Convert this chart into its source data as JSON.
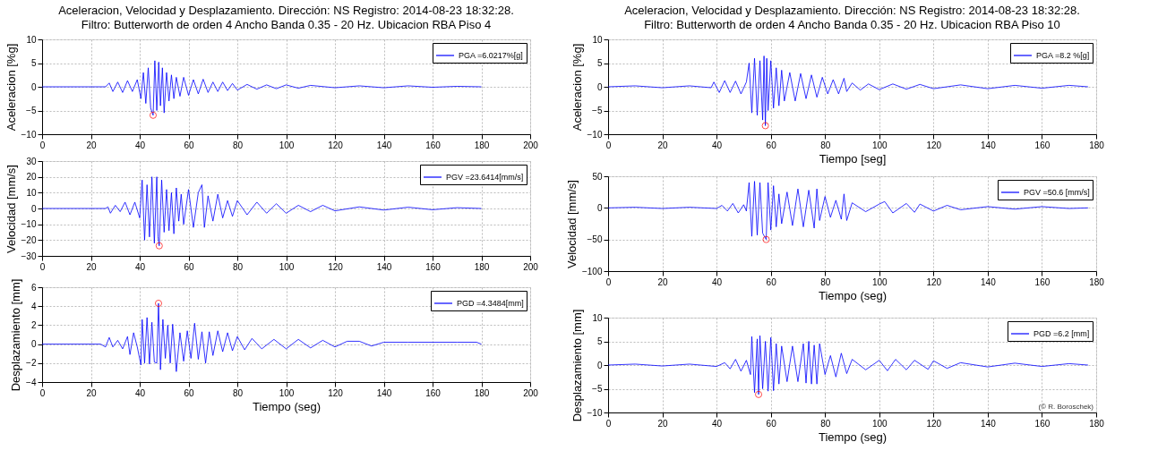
{
  "chart_data": [
    {
      "type": "line",
      "title": "Aceleracion, Velocidad y Desplazamiento. Dirección: NS Registro: 2014-08-23 18:32:28.",
      "subtitle": "Filtro: Butterworth de orden 4 Ancho Banda 0.35 - 20 Hz.  Ubicacion RBA Piso 4",
      "ylabel": "Aceleracion [%g]",
      "xlim": [
        0,
        200
      ],
      "xticks": [
        0,
        20,
        40,
        60,
        80,
        100,
        120,
        140,
        160,
        180,
        200
      ],
      "ylim": [
        -10,
        10
      ],
      "yticks": [
        -10,
        -5,
        0,
        5,
        10
      ],
      "grid": true,
      "legend": "top right",
      "series": [
        {
          "name": "PGA =6.0217%[g]",
          "color": "#0000ff",
          "x": [
            0,
            26,
            27.5,
            29,
            31,
            33,
            35,
            37,
            39,
            40.5,
            41.5,
            42.5,
            43.5,
            44.5,
            45.5,
            46.2,
            47,
            47.8,
            48.5,
            49.3,
            50,
            51,
            52,
            53,
            54,
            55,
            56.5,
            58,
            60,
            62,
            64,
            66,
            68,
            70,
            72,
            74,
            76,
            78,
            80,
            84,
            88,
            92,
            96,
            100,
            105,
            110,
            120,
            130,
            140,
            150,
            160,
            170,
            180
          ],
          "values": [
            0,
            0,
            0.8,
            -1,
            1,
            -1.2,
            1.3,
            -1,
            1.5,
            -2.5,
            3,
            -3.5,
            4,
            -4.5,
            -6,
            5.5,
            -5,
            5.2,
            -4,
            4,
            -5.5,
            3,
            -3,
            2.5,
            -2.5,
            2,
            -2,
            2,
            -1.8,
            1.5,
            -1.5,
            1.6,
            -1.2,
            1,
            -1,
            1,
            -0.8,
            0.7,
            -0.7,
            0.5,
            -0.5,
            0.4,
            -0.4,
            0.4,
            -0.3,
            0.3,
            -0.2,
            0.2,
            -0.2,
            0.2,
            -0.1,
            0.1,
            0
          ]
        },
        {
          "type": "scatter",
          "color": "#ff0000",
          "marker": "circle",
          "x": [
            45.5
          ],
          "values": [
            -6
          ]
        }
      ]
    },
    {
      "type": "line",
      "ylabel": "Velocidad [mm/s]",
      "xlim": [
        0,
        200
      ],
      "xticks": [
        0,
        20,
        40,
        60,
        80,
        100,
        120,
        140,
        160,
        180,
        200
      ],
      "ylim": [
        -30,
        30
      ],
      "yticks": [
        -30,
        -20,
        -10,
        0,
        10,
        20,
        30
      ],
      "grid": true,
      "legend": "top right",
      "series": [
        {
          "name": "PGV =23.6414[mm/s]",
          "color": "#0000ff",
          "x": [
            0,
            26,
            27,
            28,
            30,
            32,
            34,
            36,
            38,
            40,
            41,
            42,
            43,
            44,
            45,
            46,
            47,
            47.5,
            48,
            49,
            50,
            51,
            52,
            53,
            54,
            55,
            56,
            57,
            58,
            60,
            62,
            64,
            65.5,
            66.5,
            68,
            70,
            72,
            74,
            76,
            78,
            80,
            84,
            88,
            92,
            96,
            100,
            105,
            110,
            115,
            120,
            130,
            140,
            150,
            160,
            170,
            180
          ],
          "values": [
            0,
            0,
            1,
            -3,
            2,
            -2,
            4,
            -4,
            4,
            -6,
            18,
            -20,
            15,
            -18,
            20,
            -22,
            20,
            -18,
            -23.6,
            18,
            -15,
            12,
            -14,
            10,
            -16,
            13,
            -8,
            9,
            -10,
            12,
            -12,
            10,
            15,
            -12,
            8,
            -8,
            9,
            -6,
            5,
            -5,
            5,
            -4,
            4,
            -3,
            3,
            -3,
            2,
            -2,
            2,
            -1.5,
            1,
            -1,
            0.8,
            -0.8,
            0.5,
            0
          ]
        },
        {
          "type": "scatter",
          "color": "#ff0000",
          "marker": "circle",
          "x": [
            48
          ],
          "values": [
            -23.6
          ]
        }
      ]
    },
    {
      "type": "line",
      "ylabel": "Desplazamiento [mm]",
      "xlabel": "Tiempo (seg)",
      "xlim": [
        0,
        200
      ],
      "xticks": [
        0,
        20,
        40,
        60,
        80,
        100,
        120,
        140,
        160,
        180,
        200
      ],
      "ylim": [
        -4,
        6
      ],
      "yticks": [
        -4,
        -2,
        0,
        2,
        4,
        6
      ],
      "grid": true,
      "legend": "top right",
      "series": [
        {
          "name": "PGD =4.3484[mm]",
          "color": "#0000ff",
          "x": [
            0,
            24,
            26,
            27.5,
            29,
            31,
            33,
            35,
            36,
            37.5,
            39,
            40.5,
            41,
            42,
            43,
            44,
            45,
            46,
            47,
            47.7,
            48.5,
            49.5,
            50.5,
            51.5,
            52.5,
            53.5,
            55,
            56.5,
            58,
            59.5,
            61,
            62.5,
            64,
            65.5,
            67,
            68.5,
            70,
            72,
            74,
            76,
            78,
            80,
            83,
            86,
            90,
            95,
            100,
            105,
            110,
            115,
            120,
            125,
            130,
            135,
            140,
            150,
            160,
            170,
            178,
            180
          ],
          "values": [
            0,
            0,
            -0.3,
            0.7,
            -0.3,
            0.4,
            -0.5,
            0.8,
            -1.1,
            1.2,
            -0.3,
            -2.2,
            2.6,
            -2,
            2.8,
            -2.1,
            2.3,
            -1.9,
            -2,
            4.3,
            -2.7,
            2.6,
            -1.5,
            2,
            -2,
            2.1,
            -2.9,
            1.2,
            -1.8,
            1.4,
            -1.5,
            2.2,
            -1.6,
            1.3,
            -2,
            1.3,
            -1.2,
            1.4,
            -0.8,
            1.2,
            -0.7,
            0.8,
            -0.6,
            0.6,
            -0.5,
            0.5,
            -0.5,
            0.5,
            -0.4,
            0.4,
            -0.3,
            0.3,
            0.3,
            -0.2,
            0.2,
            0.2,
            0.2,
            0.2,
            0.2,
            0
          ]
        },
        {
          "type": "scatter",
          "color": "#ff0000",
          "marker": "circle",
          "x": [
            47.7
          ],
          "values": [
            4.3
          ]
        }
      ]
    },
    {
      "type": "line",
      "title": "Aceleracion, Velocidad y Desplazamiento. Dirección: NS Registro: 2014-08-23 18:32:28.",
      "subtitle": "Filtro: Butterworth de orden 4 Ancho Banda 0.35 - 20 Hz.  Ubicacion RBA Piso 10",
      "ylabel": "Aceleracion [%g]",
      "xlabel": "Tiempo [seg]",
      "xlim": [
        0,
        180
      ],
      "xticks": [
        0,
        20,
        40,
        60,
        80,
        100,
        120,
        140,
        160,
        180
      ],
      "ylim": [
        -10,
        10
      ],
      "yticks": [
        -10,
        -5,
        0,
        5,
        10
      ],
      "grid": true,
      "legend": "top right",
      "series": [
        {
          "name": "PGA =8.2 %[g]",
          "color": "#0000ff",
          "x": [
            0,
            10,
            20,
            30,
            38,
            39,
            41,
            43,
            45,
            47,
            49,
            51,
            52,
            53,
            54,
            55,
            56,
            57,
            57.5,
            58,
            58.5,
            59,
            60,
            61,
            62,
            63,
            64,
            65,
            67,
            69,
            71,
            73,
            75,
            77,
            79,
            81,
            83,
            85,
            87,
            88,
            90,
            93,
            96,
            100,
            105,
            110,
            115,
            120,
            130,
            140,
            150,
            160,
            170,
            177
          ],
          "values": [
            0,
            0.2,
            -0.2,
            0.2,
            -0.2,
            1,
            -1.2,
            1.3,
            -1.2,
            1.2,
            -1.5,
            1,
            5,
            -5.5,
            6,
            -6,
            5.5,
            -7,
            6.5,
            -8.2,
            6,
            -5,
            5.5,
            -4.5,
            4,
            -4,
            3.5,
            -3,
            3,
            -3,
            2.8,
            -2.5,
            2.5,
            -2.2,
            2,
            -1.5,
            1.5,
            -1.5,
            1.8,
            -1,
            0.8,
            -0.7,
            0.6,
            -0.6,
            0.6,
            -0.5,
            0.5,
            -0.4,
            0.4,
            -0.4,
            0.3,
            -0.3,
            0.3,
            0
          ]
        },
        {
          "type": "scatter",
          "color": "#ff0000",
          "marker": "circle",
          "x": [
            58
          ],
          "values": [
            -8.2
          ]
        }
      ]
    },
    {
      "type": "line",
      "ylabel": "Velocidad [mm/s]",
      "xlabel": "Tiempo (seg)",
      "xlim": [
        0,
        180
      ],
      "xticks": [
        0,
        20,
        40,
        60,
        80,
        100,
        120,
        140,
        160,
        180
      ],
      "ylim": [
        -100,
        50
      ],
      "yticks": [
        -100,
        -50,
        0,
        50
      ],
      "grid": true,
      "legend": "top right",
      "series": [
        {
          "name": "PGV =50.6 [mm/s]",
          "color": "#0000ff",
          "x": [
            0,
            10,
            20,
            30,
            40,
            42,
            44,
            46,
            48,
            50,
            51,
            52,
            53,
            54,
            55,
            56,
            57,
            58.3,
            59,
            60,
            61,
            62,
            63,
            64,
            66,
            68,
            70,
            72,
            74,
            76,
            77,
            78,
            80,
            82,
            84,
            86,
            87,
            88,
            90,
            95,
            100,
            102,
            105,
            110,
            113,
            115,
            120,
            125,
            130,
            140,
            150,
            160,
            170,
            177
          ],
          "values": [
            0,
            1,
            -1,
            1,
            -1,
            4,
            -5,
            7,
            -8,
            5,
            -5,
            40,
            -45,
            42,
            -43,
            40,
            -40,
            -50,
            40,
            -35,
            35,
            -30,
            22,
            -25,
            25,
            -28,
            30,
            -30,
            28,
            -32,
            30,
            -20,
            18,
            -15,
            12,
            -18,
            22,
            -20,
            8,
            -6,
            6,
            10,
            -8,
            7,
            -7,
            6,
            -5,
            4,
            -3,
            2,
            -2,
            2,
            -1,
            0
          ]
        },
        {
          "type": "scatter",
          "color": "#ff0000",
          "marker": "circle",
          "x": [
            58.3
          ],
          "values": [
            -50
          ]
        }
      ]
    },
    {
      "type": "line",
      "ylabel": "Desplazamiento [mm]",
      "xlabel": "Tiempo (seg)",
      "xlim": [
        0,
        180
      ],
      "xticks": [
        0,
        20,
        40,
        60,
        80,
        100,
        120,
        140,
        160,
        180
      ],
      "ylim": [
        -10,
        10
      ],
      "yticks": [
        -10,
        -5,
        0,
        5,
        10
      ],
      "grid": true,
      "legend": "top right",
      "annotations": [
        "(© R. Boroschek)"
      ],
      "series": [
        {
          "name": "PGD =6.2 [mm]",
          "color": "#0000ff",
          "x": [
            0,
            10,
            20,
            30,
            40,
            43,
            45,
            47,
            49,
            51,
            52.5,
            53,
            54,
            55,
            55.5,
            56,
            57,
            58,
            59,
            60,
            61,
            62,
            63,
            64,
            66,
            68,
            70,
            72,
            73,
            74,
            75,
            76,
            77,
            78,
            80,
            82,
            84,
            86,
            88,
            90,
            95,
            100,
            103,
            106,
            110,
            113,
            118,
            120,
            125,
            130,
            140,
            150,
            160,
            170,
            177
          ],
          "values": [
            0,
            0.2,
            -0.2,
            0.2,
            -0.3,
            0.5,
            -0.8,
            1.2,
            -1.3,
            1,
            -2,
            6,
            -5.8,
            5.5,
            -6.2,
            6.2,
            -5,
            5,
            -5.5,
            5.8,
            -5.4,
            4.5,
            -4,
            4,
            -3.5,
            4,
            -3.5,
            4.5,
            -3.8,
            5,
            -4,
            4.2,
            -4,
            4.5,
            -2,
            2,
            -2.5,
            2.5,
            -1.8,
            1.2,
            -1,
            1,
            -1.2,
            1.2,
            -1,
            1,
            -0.9,
            0.9,
            -0.7,
            0.5,
            -0.4,
            0.4,
            -0.3,
            0.3,
            0
          ]
        },
        {
          "type": "scatter",
          "color": "#ff0000",
          "marker": "circle",
          "x": [
            55.5
          ],
          "values": [
            -6.2
          ]
        }
      ]
    }
  ]
}
